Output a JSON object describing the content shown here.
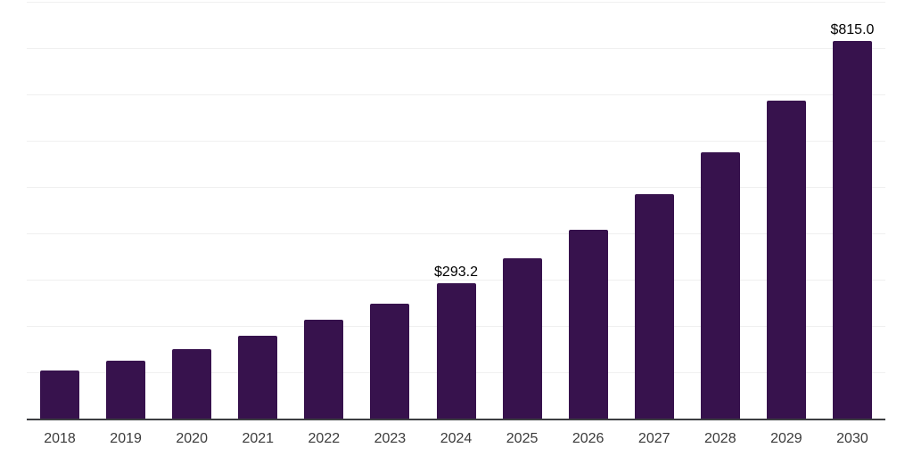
{
  "chart_data": {
    "type": "bar",
    "title": "",
    "xlabel": "",
    "ylabel": "",
    "categories": [
      "2018",
      "2019",
      "2020",
      "2021",
      "2022",
      "2023",
      "2024",
      "2025",
      "2026",
      "2027",
      "2028",
      "2029",
      "2030"
    ],
    "values": [
      104,
      125,
      150,
      179,
      213,
      249,
      293.2,
      346,
      408,
      485,
      575,
      687,
      815
    ],
    "point_labels": [
      null,
      null,
      null,
      null,
      null,
      null,
      "$293.2",
      null,
      null,
      null,
      null,
      null,
      "$815.0"
    ],
    "currency_prefix": "$",
    "ylim": [
      0,
      900
    ],
    "gridline_step": 100,
    "grid": "horizontal-only",
    "legend_position": "none",
    "y_tick_labels_visible": false
  },
  "style": {
    "background_color": "#ffffff",
    "bar_color": "#37124d",
    "gridline_color": "#f0f0f0",
    "axis_line_color": "#3d3e42",
    "value_label_color": "#000000",
    "tick_label_color": "#3b3b3b"
  }
}
